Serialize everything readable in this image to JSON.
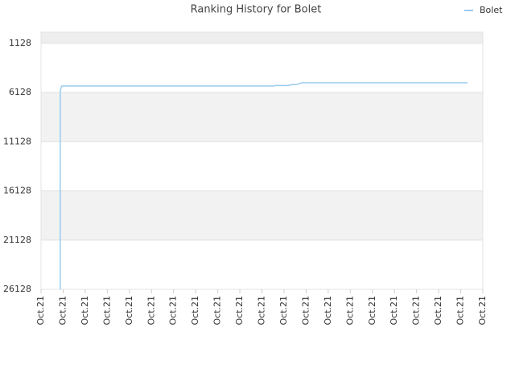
{
  "chart_data": {
    "type": "line",
    "title": "Ranking History for Bolet",
    "x": [
      0.87,
      0.87,
      0.93,
      10.5,
      10.6,
      11.2,
      11.3,
      11.6,
      11.8,
      19.31
    ],
    "series": [
      {
        "name": "Bolet",
        "color": "#99ccee",
        "values": [
          26128,
          6000,
          5472,
          5472,
          5420,
          5420,
          5350,
          5300,
          5144,
          5144
        ]
      }
    ],
    "xlim": [
      0,
      20
    ],
    "xticks": [
      {
        "value": 0,
        "label": "Oct.21"
      },
      {
        "value": 1,
        "label": "Oct.21"
      },
      {
        "value": 2,
        "label": "Oct.21"
      },
      {
        "value": 3,
        "label": "Oct.21"
      },
      {
        "value": 4,
        "label": "Oct.21"
      },
      {
        "value": 5,
        "label": "Oct.21"
      },
      {
        "value": 6,
        "label": "Oct.21"
      },
      {
        "value": 7,
        "label": "Oct.21"
      },
      {
        "value": 8,
        "label": "Oct.21"
      },
      {
        "value": 9,
        "label": "Oct.21"
      },
      {
        "value": 10,
        "label": "Oct.21"
      },
      {
        "value": 11,
        "label": "Oct.21"
      },
      {
        "value": 12,
        "label": "Oct.21"
      },
      {
        "value": 13,
        "label": "Oct.21"
      },
      {
        "value": 14,
        "label": "Oct.21"
      },
      {
        "value": 15,
        "label": "Oct.21"
      },
      {
        "value": 16,
        "label": "Oct.21"
      },
      {
        "value": 17,
        "label": "Oct.21"
      },
      {
        "value": 18,
        "label": "Oct.21"
      },
      {
        "value": 19,
        "label": "Oct.21"
      },
      {
        "value": 20,
        "label": "Oct.21"
      }
    ],
    "ylim": [
      26128,
      0
    ],
    "yticks": [
      1128,
      6128,
      11128,
      16128,
      21128,
      26128
    ],
    "grid": true,
    "legend": "top-right"
  }
}
